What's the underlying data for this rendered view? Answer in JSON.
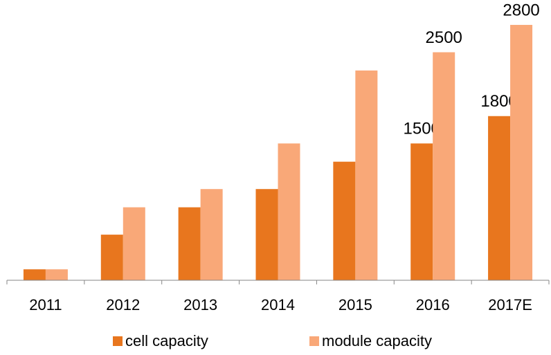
{
  "chart_data": {
    "type": "bar",
    "categories": [
      "2011",
      "2012",
      "2013",
      "2014",
      "2015",
      "2016",
      "2017E"
    ],
    "series": [
      {
        "name": "cell capacity",
        "color": "#e8761e",
        "values": [
          120,
          500,
          800,
          1000,
          1300,
          1500,
          1800
        ],
        "value_labels": [
          null,
          null,
          null,
          null,
          null,
          "1500",
          "1800"
        ]
      },
      {
        "name": "module capacity",
        "color": "#f9a878",
        "values": [
          120,
          800,
          1000,
          1500,
          2300,
          2500,
          2800
        ],
        "value_labels": [
          null,
          null,
          null,
          null,
          null,
          "2500",
          "2800"
        ]
      }
    ],
    "ylim": [
      0,
      3000
    ],
    "grid": false,
    "legend": "bottom"
  }
}
